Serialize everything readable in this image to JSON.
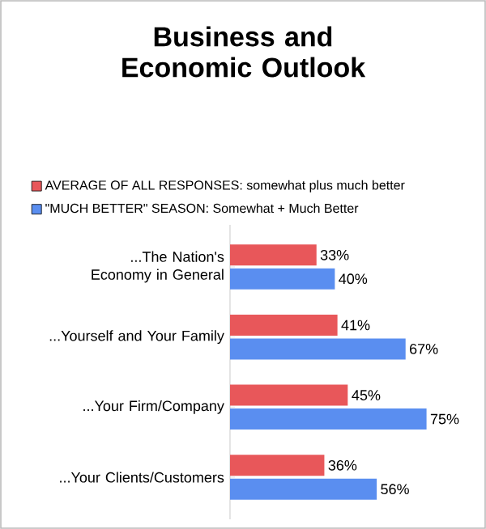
{
  "chart_data": {
    "type": "bar",
    "orientation": "horizontal",
    "title": "Business and Economic Outlook",
    "categories": [
      "...The Nation's Economy in General",
      "...Yourself and Your Family",
      "...Your Firm/Company",
      "...Your Clients/Customers"
    ],
    "series": [
      {
        "name": "AVERAGE OF ALL RESPONSES: somewhat plus much better",
        "color": "#e8575a",
        "values": [
          33,
          41,
          45,
          36
        ],
        "value_labels": [
          "33%",
          "41%",
          "45%",
          "36%"
        ]
      },
      {
        "name": "\"MUCH BETTER\" SEASON: Somewhat + Much Better",
        "color": "#5a8ef0",
        "values": [
          40,
          67,
          75,
          56
        ],
        "value_labels": [
          "40%",
          "67%",
          "75%",
          "56%"
        ]
      }
    ],
    "tick_labels": "y",
    "legend": "top"
  }
}
